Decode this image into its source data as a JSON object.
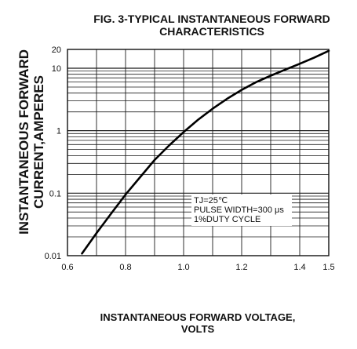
{
  "chart_data": {
    "type": "line",
    "title": [
      "FIG. 3-TYPICAL INSTANTANEOUS FORWARD",
      "CHARACTERISTICS"
    ],
    "xlabel": [
      "INSTANTANEOUS FORWARD VOLTAGE,",
      "VOLTS"
    ],
    "ylabel": [
      "INSTANTANEOUS FORWARD",
      "CURRENT,AMPERES"
    ],
    "xlim": [
      0.6,
      1.5
    ],
    "ylim": [
      0.01,
      20
    ],
    "yscale": "log",
    "grid": true,
    "x_ticks": [
      0.6,
      0.8,
      1.0,
      1.2,
      1.4,
      1.5
    ],
    "x_tick_labels": [
      "0.6",
      "0.8",
      "1.0",
      "1.2",
      "1.4",
      "1.5"
    ],
    "y_ticks": [
      0.01,
      0.1,
      1,
      10,
      20
    ],
    "y_tick_labels": [
      "0.01",
      "0.1",
      "1",
      "10",
      "20"
    ],
    "legend_text": [
      "TJ=25℃",
      "PULSE WIDTH=300 μs",
      "1%DUTY CYCLE"
    ],
    "series": [
      {
        "x": [
          0.65,
          0.7,
          0.75,
          0.8,
          0.85,
          0.9,
          0.95,
          1.0,
          1.05,
          1.1,
          1.15,
          1.2,
          1.25,
          1.3,
          1.35,
          1.4,
          1.45,
          1.5
        ],
        "values": [
          0.0108,
          0.023,
          0.047,
          0.095,
          0.18,
          0.34,
          0.58,
          0.95,
          1.5,
          2.25,
          3.25,
          4.5,
          6.0,
          7.6,
          9.5,
          11.8,
          14.8,
          19.0
        ]
      }
    ]
  }
}
